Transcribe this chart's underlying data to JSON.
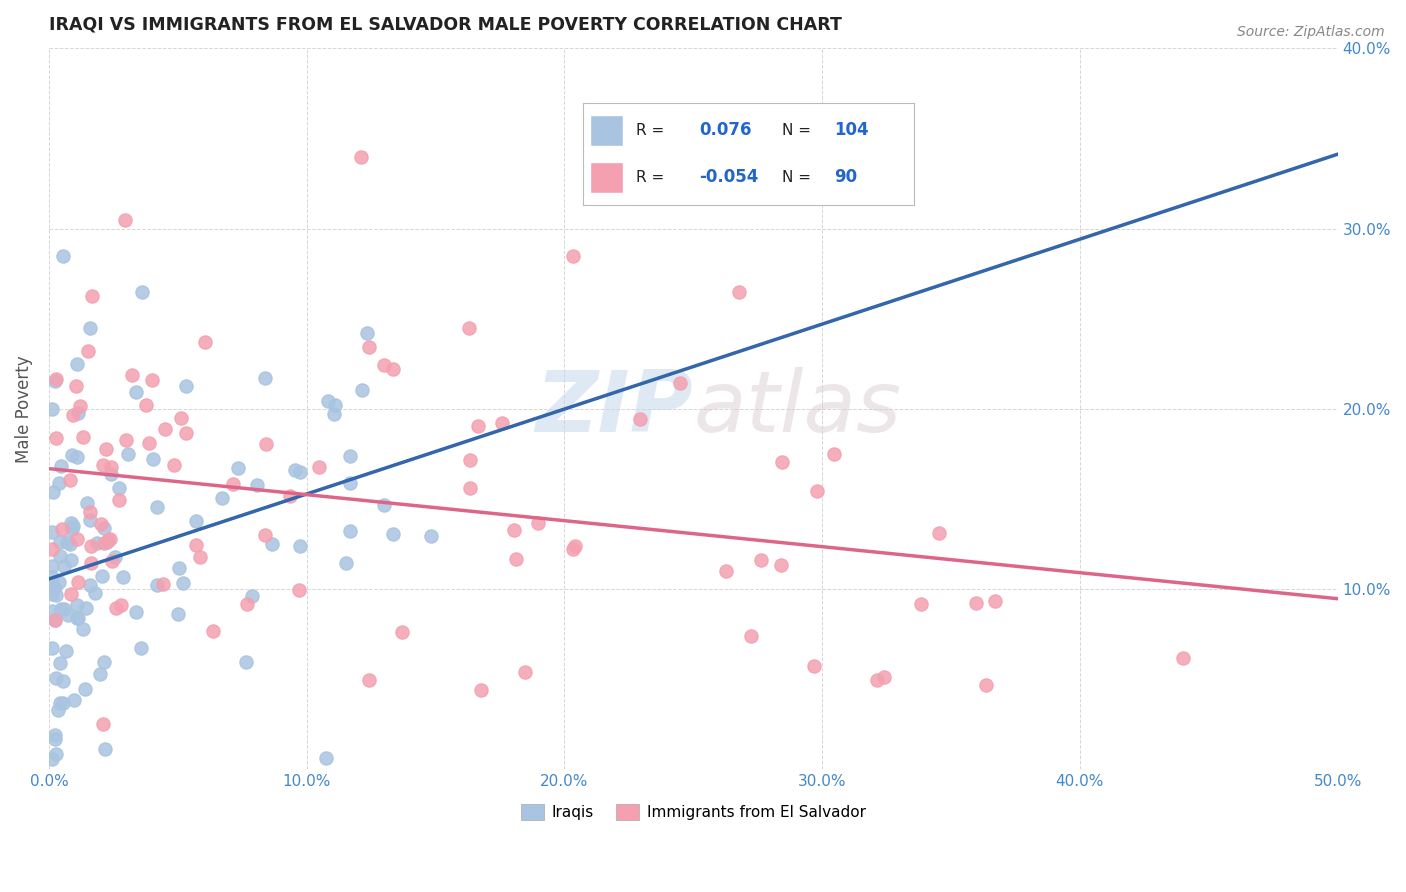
{
  "title": "IRAQI VS IMMIGRANTS FROM EL SALVADOR MALE POVERTY CORRELATION CHART",
  "source": "Source: ZipAtlas.com",
  "ylabel": "Male Poverty",
  "xlim": [
    0.0,
    0.5
  ],
  "ylim": [
    0.0,
    0.4
  ],
  "xticks": [
    0.0,
    0.1,
    0.2,
    0.3,
    0.4,
    0.5
  ],
  "yticks": [
    0.0,
    0.1,
    0.2,
    0.3,
    0.4
  ],
  "legend_labels": [
    "Iraqis",
    "Immigrants from El Salvador"
  ],
  "iraqi_color": "#a8c4e0",
  "salvador_color": "#f4a0b0",
  "iraqi_line_color": "#3366aa",
  "salvador_line_color": "#dd6688",
  "dashed_line_color": "#88aacc",
  "R_iraqi": 0.076,
  "N_iraqi": 104,
  "R_salvador": -0.054,
  "N_salvador": 90,
  "watermark_zip": "ZIP",
  "watermark_atlas": "atlas",
  "background_color": "#ffffff",
  "grid_color": "#bbbbbb",
  "title_color": "#222222",
  "axis_color": "#4488cc",
  "legend_text_color": "#222222",
  "legend_value_color": "#2266cc"
}
